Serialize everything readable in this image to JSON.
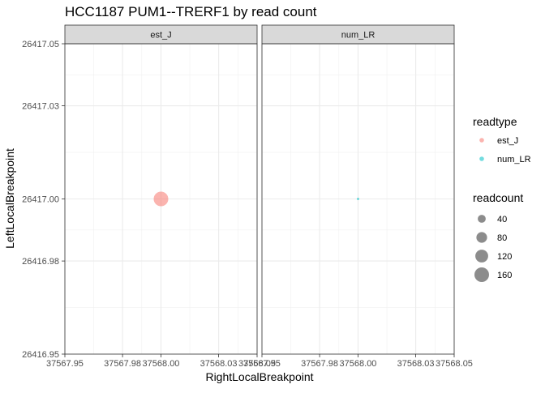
{
  "chart_data": {
    "type": "scatter",
    "title": "HCC1187 PUM1--TRERF1 by read count",
    "xlabel": "RightLocalBreakpoint",
    "ylabel": "LeftLocalBreakpoint",
    "facets": [
      "est_J",
      "num_LR"
    ],
    "xlim": [
      37567.95,
      37568.05
    ],
    "ylim": [
      26416.95,
      26417.05
    ],
    "x_ticks": [
      37567.95,
      37567.98,
      37568.0,
      37568.03,
      37568.05
    ],
    "x_tick_labels": [
      "37567.95",
      "37567.98",
      "37568.00",
      "37568.03",
      "37568.05"
    ],
    "y_ticks": [
      26416.95,
      26416.98,
      26417.0,
      26417.03,
      26417.05
    ],
    "y_tick_labels": [
      "26416.95",
      "26416.98",
      "26417.00",
      "26417.03",
      "26417.05"
    ],
    "series": [
      {
        "name": "est_J",
        "facet": "est_J",
        "color": "#F8766D",
        "points": [
          {
            "x": 37568.0,
            "y": 26417.0,
            "readcount": 160
          }
        ]
      },
      {
        "name": "num_LR",
        "facet": "num_LR",
        "color": "#00BFC4",
        "points": [
          {
            "x": 37568.0,
            "y": 26417.0,
            "readcount": 1
          }
        ]
      }
    ],
    "legend": {
      "readtype_title": "readtype",
      "readtype_entries": [
        {
          "label": "est_J",
          "color": "#F8766D"
        },
        {
          "label": "num_LR",
          "color": "#00BFC4"
        }
      ],
      "readcount_title": "readcount",
      "readcount_entries": [
        {
          "label": "40",
          "value": 40
        },
        {
          "label": "80",
          "value": 80
        },
        {
          "label": "120",
          "value": 120
        },
        {
          "label": "160",
          "value": 160
        }
      ],
      "placement": "right"
    },
    "grid": true,
    "size_range_readcount": [
      1,
      160
    ]
  }
}
